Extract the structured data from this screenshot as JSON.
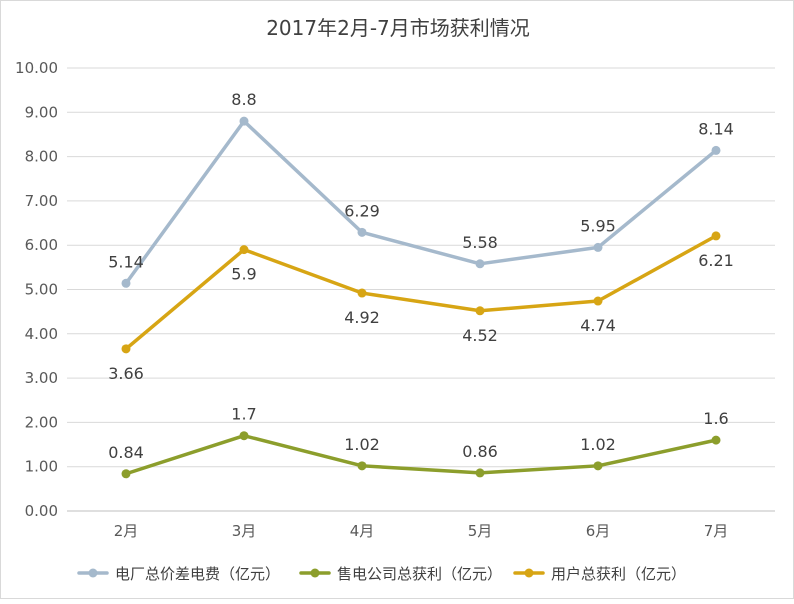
{
  "chart_data": {
    "type": "line",
    "title": "2017年2月-7月市场获利情况",
    "categories": [
      "2月",
      "3月",
      "4月",
      "5月",
      "6月",
      "7月"
    ],
    "y_ticks": [
      "0.00",
      "1.00",
      "2.00",
      "3.00",
      "4.00",
      "5.00",
      "6.00",
      "7.00",
      "8.00",
      "9.00",
      "10.00"
    ],
    "ylim": [
      0,
      10
    ],
    "grid": true,
    "legend_position": "bottom",
    "series": [
      {
        "name": "电厂总价差电费（亿元）",
        "color": "#a5b9cc",
        "values": [
          5.14,
          8.8,
          6.29,
          5.58,
          5.95,
          8.14
        ],
        "labels": [
          "5.14",
          "8.8",
          "6.29",
          "5.58",
          "5.95",
          "8.14"
        ],
        "label_positions": [
          "above",
          "above",
          "above",
          "above",
          "above",
          "above"
        ]
      },
      {
        "name": "售电公司总获利（亿元）",
        "color": "#8c9e2c",
        "values": [
          0.84,
          1.7,
          1.02,
          0.86,
          1.02,
          1.6
        ],
        "labels": [
          "0.84",
          "1.7",
          "1.02",
          "0.86",
          "1.02",
          "1.6"
        ],
        "label_positions": [
          "above",
          "above",
          "above",
          "above",
          "above",
          "above"
        ]
      },
      {
        "name": "用户总获利（亿元）",
        "color": "#d7a514",
        "values": [
          3.66,
          5.9,
          4.92,
          4.52,
          4.74,
          6.21
        ],
        "labels": [
          "3.66",
          "5.9",
          "4.92",
          "4.52",
          "4.74",
          "6.21"
        ],
        "label_positions": [
          "below",
          "below",
          "below",
          "below",
          "below",
          "below"
        ]
      }
    ]
  }
}
